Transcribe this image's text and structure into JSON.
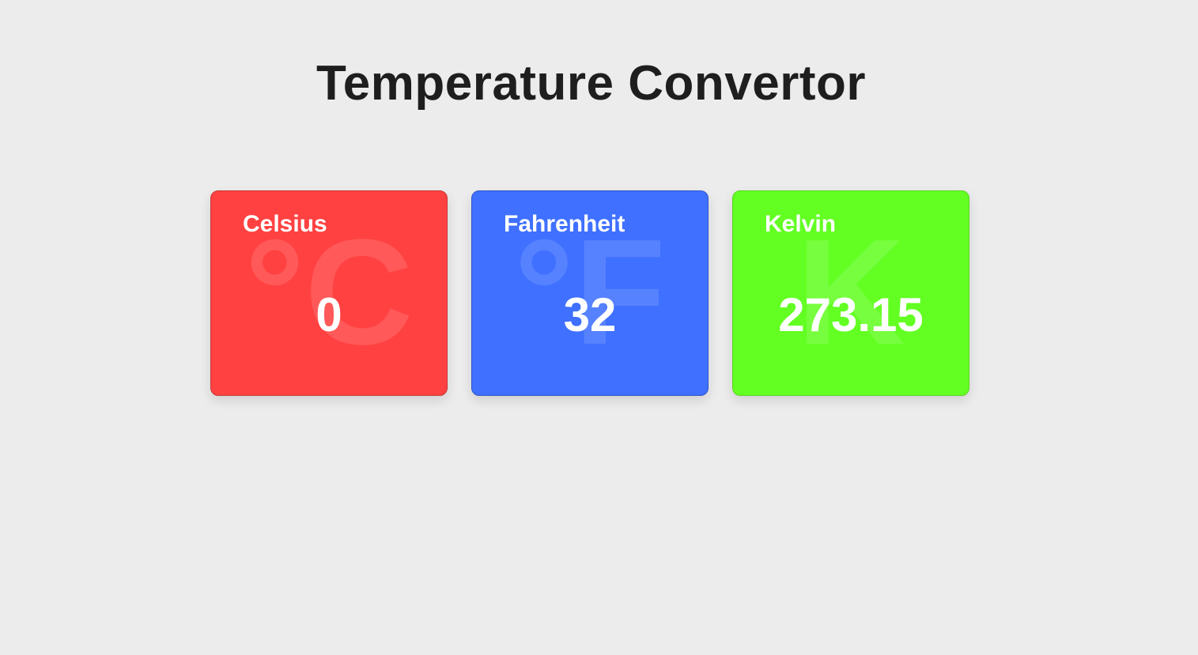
{
  "page": {
    "title": "Temperature Convertor"
  },
  "colors": {
    "background": "#ececec",
    "celsius": "#ff4141",
    "fahrenheit": "#3f70ff",
    "kelvin": "#63ff23"
  },
  "cards": [
    {
      "key": "celsius",
      "label": "Celsius",
      "symbol": "°C",
      "value": "0"
    },
    {
      "key": "fahrenheit",
      "label": "Fahrenheit",
      "symbol": "°F",
      "value": "32"
    },
    {
      "key": "kelvin",
      "label": "Kelvin",
      "symbol": "K",
      "value": "273.15"
    }
  ]
}
